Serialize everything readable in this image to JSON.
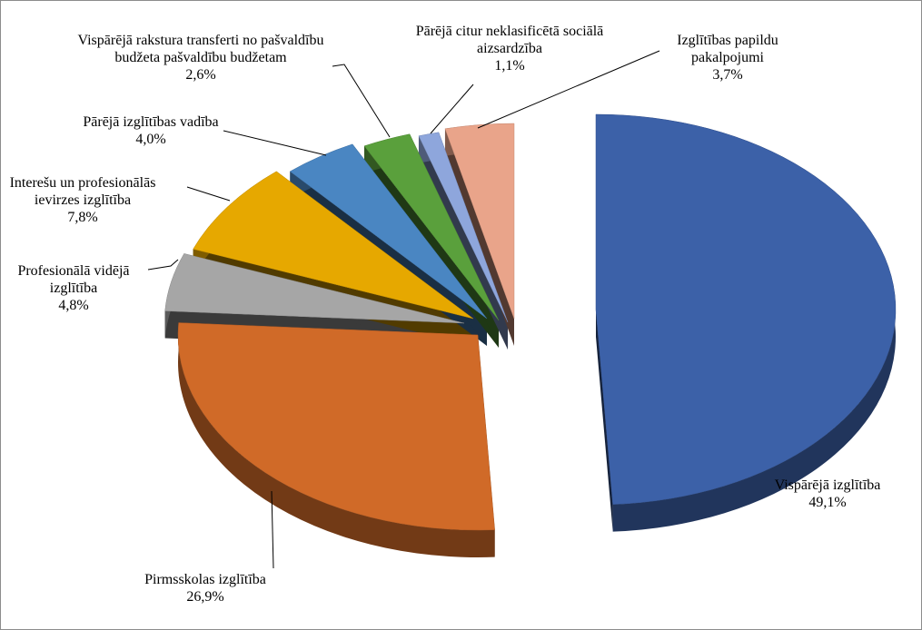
{
  "chart_data": {
    "type": "pie",
    "style": "3d-exploded",
    "title": "",
    "slices": [
      {
        "name": "Vispārējā izglītība",
        "value": 49.1,
        "label_pct": "49,1%",
        "color": "#3c61a8",
        "label_lines": [
          "Vispārējā izglītība"
        ]
      },
      {
        "name": "Pirmsskolas izglītība",
        "value": 26.9,
        "label_pct": "26,9%",
        "color": "#d06a28",
        "label_lines": [
          "Pirmsskolas izglītība"
        ]
      },
      {
        "name": "Profesionālā vidējā izglītība",
        "value": 4.8,
        "label_pct": "4,8%",
        "color": "#a6a6a6",
        "label_lines": [
          "Profesionālā vidējā",
          "izglītība"
        ]
      },
      {
        "name": "Interešu un profesionālās ievirzes izglītība",
        "value": 7.8,
        "label_pct": "7,8%",
        "color": "#e6a800",
        "label_lines": [
          "Interešu un profesionālās",
          "ievirzes izglītība"
        ]
      },
      {
        "name": "Pārējā izglītības vadība",
        "value": 4.0,
        "label_pct": "4,0%",
        "color": "#4a86c2",
        "label_lines": [
          "Pārējā izglītības vadība"
        ]
      },
      {
        "name": "Vispārējā rakstura transferti no pašvaldību budžeta pašvaldību budžetam",
        "value": 2.6,
        "label_pct": "2,6%",
        "color": "#5aa03c",
        "label_lines": [
          "Vispārējā rakstura transferti no pašvaldību",
          "budžeta pašvaldību budžetam"
        ]
      },
      {
        "name": "Pārējā citur neklasificētā sociālā aizsardzība",
        "value": 1.1,
        "label_pct": "1,1%",
        "color": "#8ea6dc",
        "label_lines": [
          "Pārējā citur neklasificētā sociālā",
          "aizsardzība"
        ]
      },
      {
        "name": "Izglītības papildu pakalpojumi",
        "value": 3.7,
        "label_pct": "3,7%",
        "color": "#e9a48a",
        "label_lines": [
          "Izglītības papildu",
          "pakalpojumi"
        ]
      }
    ]
  }
}
